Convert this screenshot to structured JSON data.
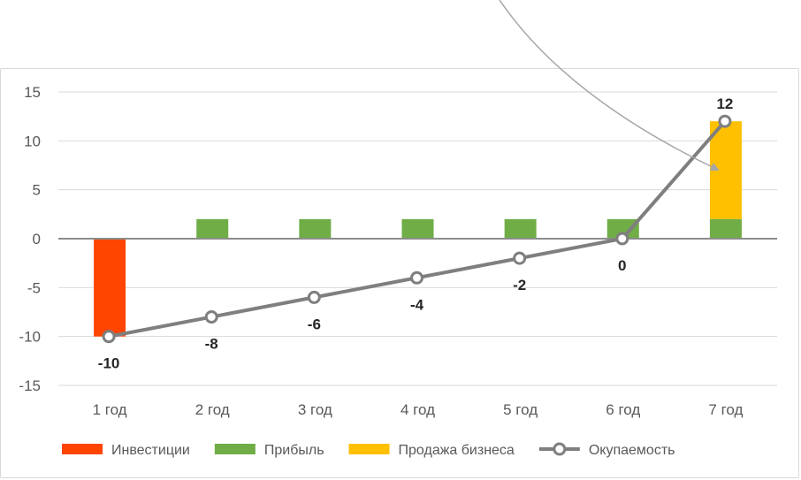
{
  "chart_data": {
    "type": "bar",
    "categories": [
      "1 год",
      "2 год",
      "3 год",
      "4 год",
      "5 год",
      "6 год",
      "7 год"
    ],
    "series": [
      {
        "name": "Инвестиции",
        "kind": "bar",
        "color": "#ff4500",
        "values": [
          -10,
          0,
          0,
          0,
          0,
          0,
          0
        ]
      },
      {
        "name": "Прибыль",
        "kind": "bar",
        "color": "#70ad47",
        "values": [
          0,
          2,
          2,
          2,
          2,
          2,
          2
        ]
      },
      {
        "name": "Продажа бизнеса",
        "kind": "bar",
        "color": "#ffc000",
        "values": [
          0,
          0,
          0,
          0,
          0,
          0,
          10
        ]
      },
      {
        "name": "Окупаемость",
        "kind": "line",
        "color": "#7f7f7f",
        "values": [
          -10,
          -8,
          -6,
          -4,
          -2,
          0,
          12
        ]
      }
    ],
    "data_labels": [
      "-10",
      "-8",
      "-6",
      "-4",
      "-2",
      "0",
      "12"
    ],
    "yticks": [
      "15",
      "10",
      "5",
      "0",
      "-5",
      "-10",
      "-15"
    ],
    "ylim": [
      -15,
      15
    ],
    "grid": true,
    "legend_position": "bottom",
    "annotation": "arrow pointing to business sale bar"
  }
}
